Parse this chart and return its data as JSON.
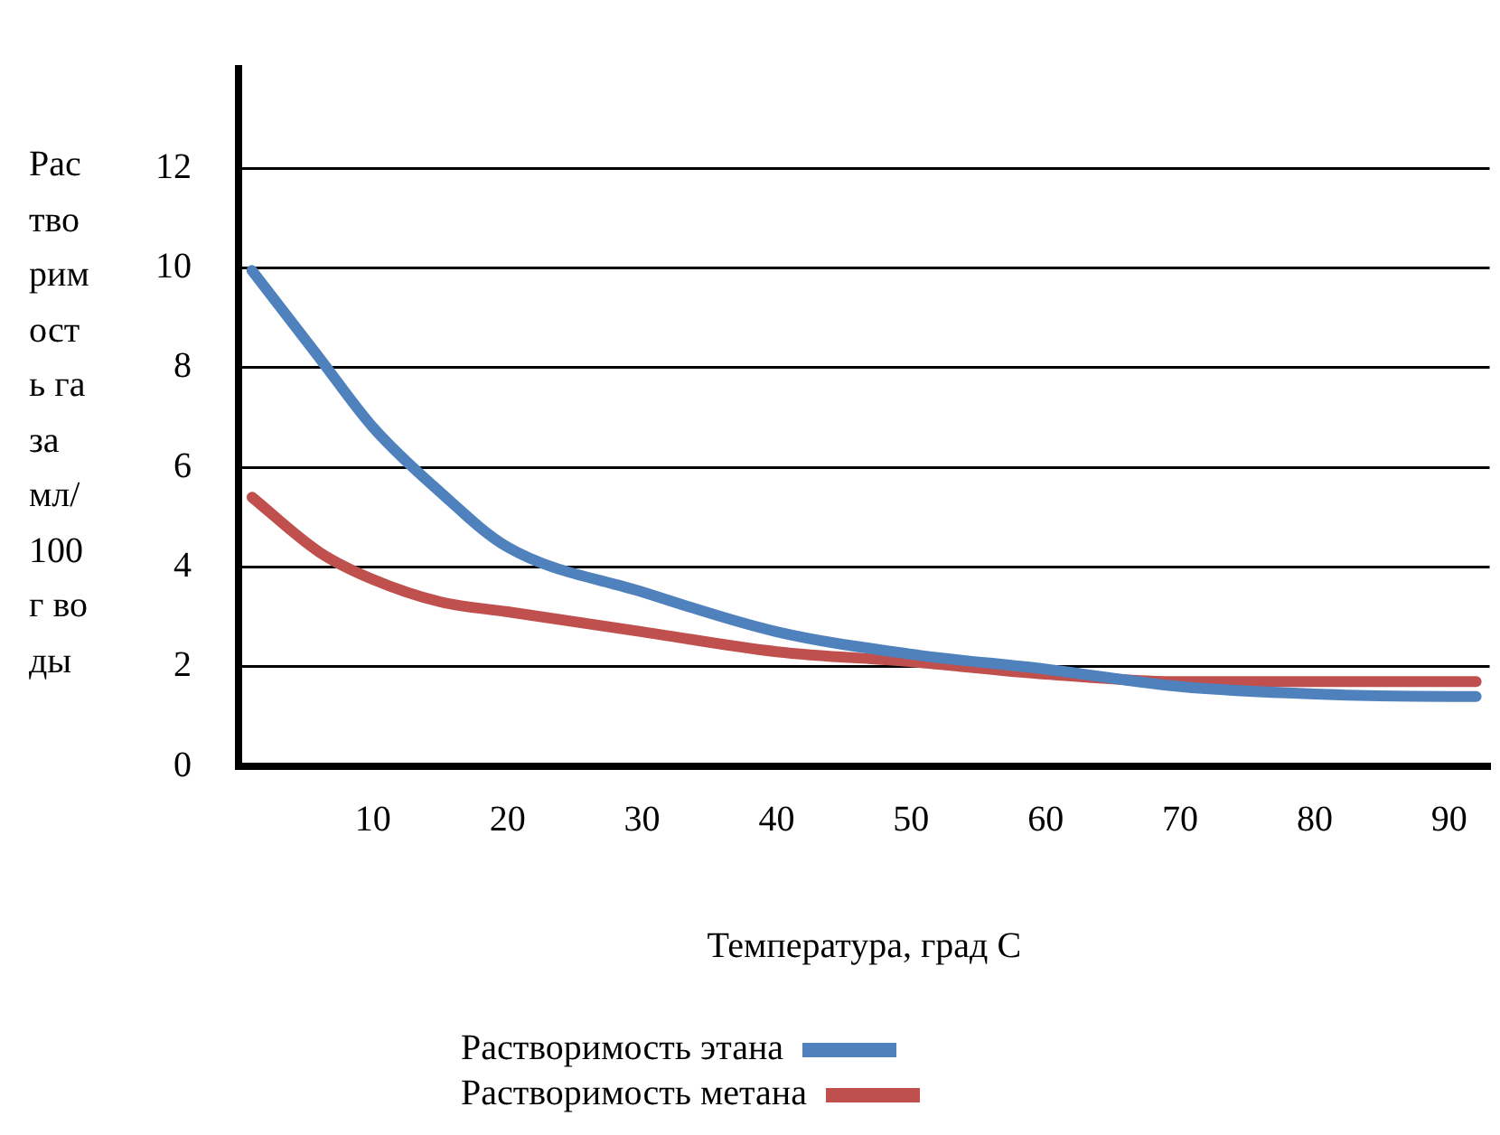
{
  "chart_data": {
    "type": "line",
    "xlabel": "Температура, град С",
    "ylabel": "Растворимость газа мл/100 г воды",
    "xlim": [
      0,
      93
    ],
    "xticks": [
      10,
      20,
      30,
      40,
      50,
      60,
      70,
      80,
      90
    ],
    "ylim": [
      0,
      14
    ],
    "yticks": [
      0,
      2,
      4,
      6,
      8,
      10,
      12
    ],
    "grid": "y",
    "legend": "bottom",
    "marker": "none",
    "line_style": "solid",
    "series": [
      {
        "name": "Растворимость этана",
        "color": "#4f81bd",
        "x": [
          1,
          6,
          10,
          15,
          20,
          30,
          40,
          50,
          60,
          70,
          80,
          90,
          92
        ],
        "values": [
          9.95,
          8.2,
          6.8,
          5.5,
          4.4,
          3.5,
          2.7,
          2.25,
          1.95,
          1.6,
          1.45,
          1.4,
          1.4
        ]
      },
      {
        "name": "Растворимость метана",
        "color": "#c0504d",
        "x": [
          1,
          6,
          10,
          15,
          20,
          30,
          40,
          50,
          60,
          70,
          80,
          90,
          92
        ],
        "values": [
          5.4,
          4.3,
          3.75,
          3.3,
          3.1,
          2.7,
          2.3,
          2.1,
          1.85,
          1.7,
          1.7,
          1.7,
          1.7
        ]
      }
    ]
  }
}
